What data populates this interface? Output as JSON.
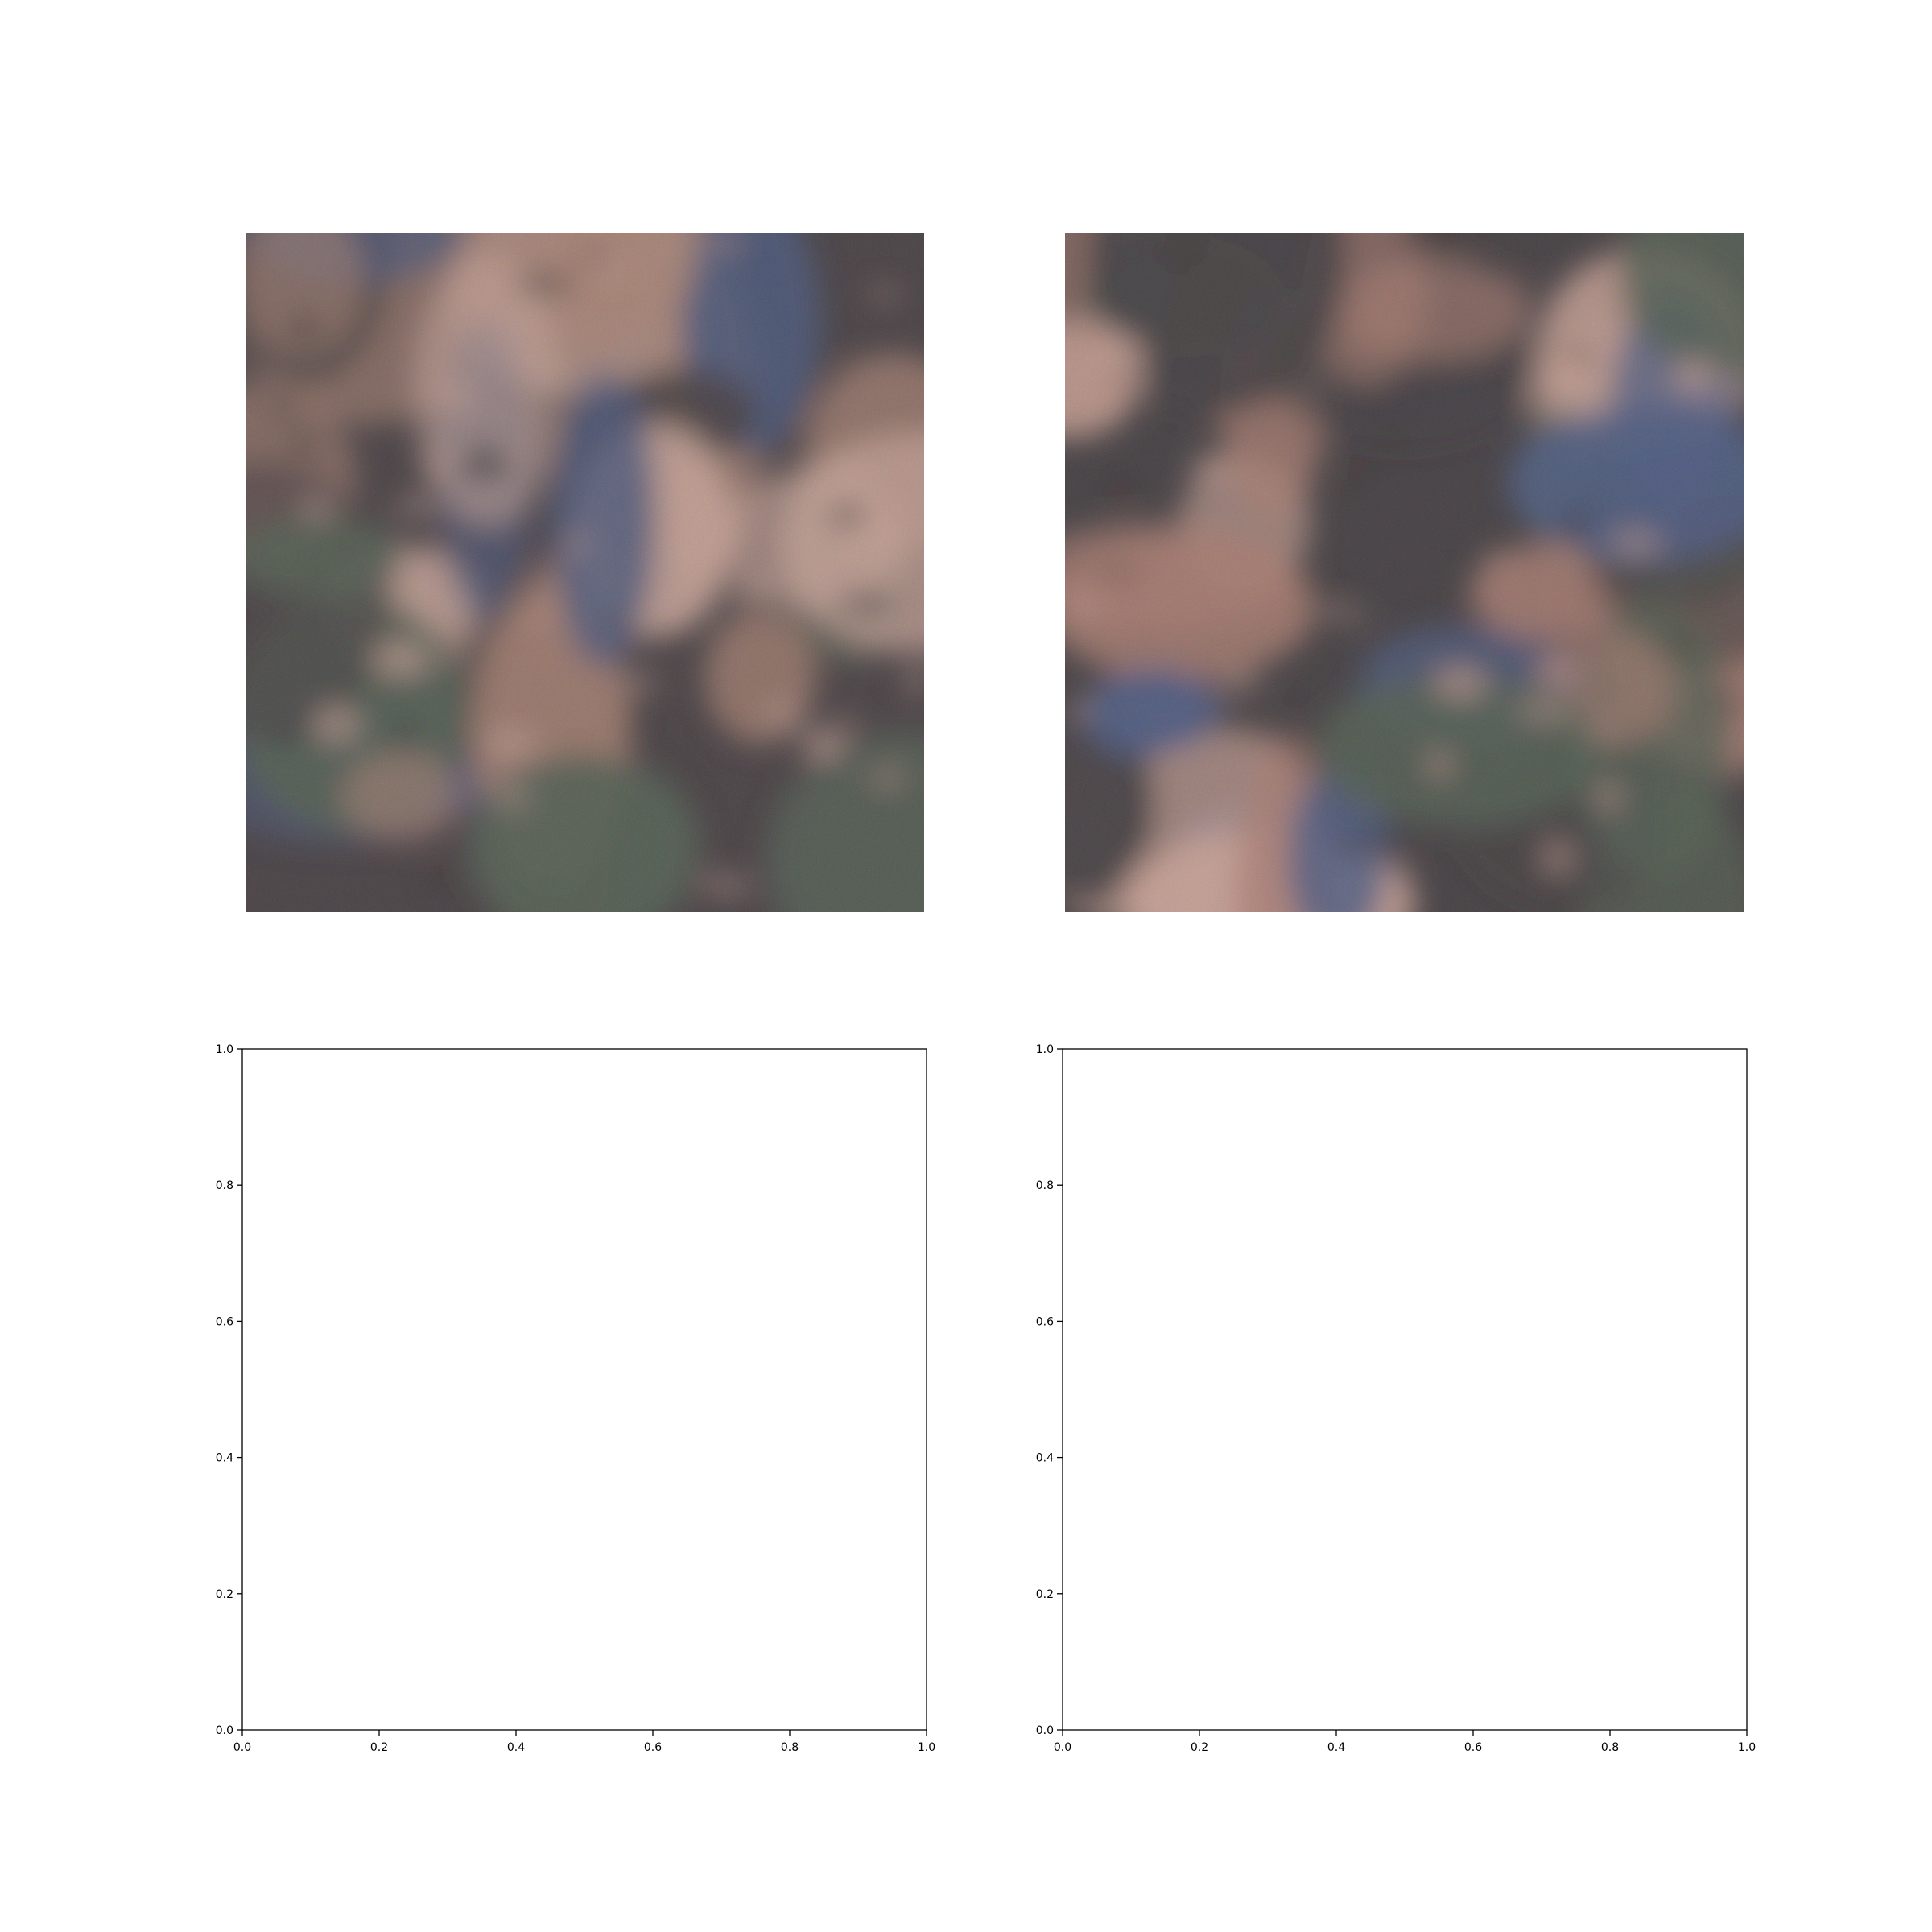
{
  "figure": {
    "layout": "2x2 grid",
    "background": "#ffffff"
  },
  "chart_data": [
    {
      "type": "image",
      "panel": "top-left",
      "content": "generated face-like collage image (noisy GAN-style output)",
      "axes": "off",
      "palette": {
        "dark": "#2a1f24",
        "skin": "#b07a66",
        "light_skin": "#d8a596",
        "blue": "#2e3f6e",
        "green": "#3b4a3a"
      }
    },
    {
      "type": "image",
      "panel": "top-right",
      "content": "generated face-like collage image (noisy GAN-style output)",
      "axes": "off",
      "palette": {
        "dark": "#251d22",
        "skin": "#b07263",
        "light_skin": "#dba495",
        "blue": "#32457a",
        "green": "#394838"
      }
    },
    {
      "type": "empty",
      "panel": "bottom-left",
      "xlim": [
        0.0,
        1.0
      ],
      "ylim": [
        0.0,
        1.0
      ],
      "xticks": [
        "0.0",
        "0.2",
        "0.4",
        "0.6",
        "0.8",
        "1.0"
      ],
      "yticks": [
        "0.0",
        "0.2",
        "0.4",
        "0.6",
        "0.8",
        "1.0"
      ],
      "grid": false
    },
    {
      "type": "empty",
      "panel": "bottom-right",
      "xlim": [
        0.0,
        1.0
      ],
      "ylim": [
        0.0,
        1.0
      ],
      "xticks": [
        "0.0",
        "0.2",
        "0.4",
        "0.6",
        "0.8",
        "1.0"
      ],
      "yticks": [
        "0.0",
        "0.2",
        "0.4",
        "0.6",
        "0.8",
        "1.0"
      ],
      "grid": false
    }
  ]
}
